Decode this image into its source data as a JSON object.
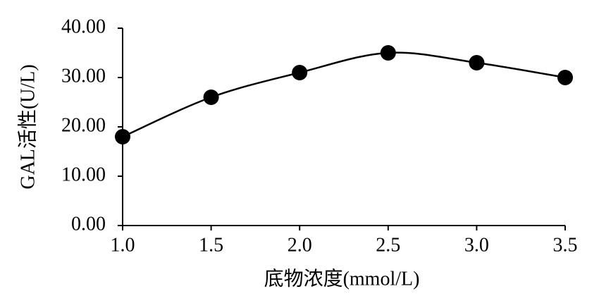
{
  "chart_data": {
    "type": "line",
    "x_label": "底物浓度(mmol/L)",
    "y_label": "GAL活性(U/L)",
    "x": [
      1.0,
      1.5,
      2.0,
      2.5,
      3.0,
      3.5
    ],
    "series": [
      {
        "name": "GAL活性",
        "color": "#000000",
        "values": [
          18,
          26,
          31,
          35,
          33,
          30
        ]
      }
    ],
    "xlim": [
      1,
      3.5
    ],
    "xticks": [
      {
        "value": 1,
        "label": "1.0"
      },
      {
        "value": 1.5,
        "label": "1.5"
      },
      {
        "value": 2,
        "label": "2.0"
      },
      {
        "value": 2.5,
        "label": "2.5"
      },
      {
        "value": 3,
        "label": "3.0"
      },
      {
        "value": 3.5,
        "label": "3.5"
      }
    ],
    "ylim": [
      0,
      40
    ],
    "yticks": [
      {
        "value": 0,
        "label": "0.00"
      },
      {
        "value": 10,
        "label": "10.00"
      },
      {
        "value": 20,
        "label": "20.00"
      },
      {
        "value": 30,
        "label": "30.00"
      },
      {
        "value": 40,
        "label": "40.00"
      }
    ],
    "smooth": true
  }
}
